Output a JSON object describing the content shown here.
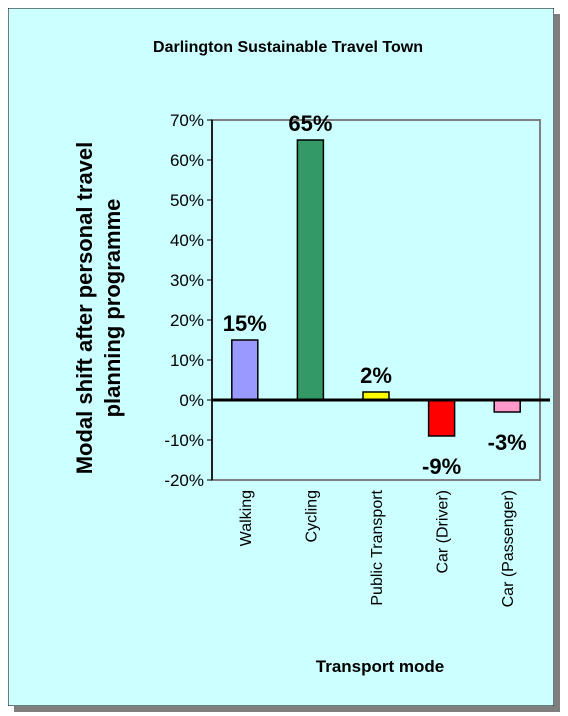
{
  "chart_data": {
    "type": "bar",
    "title": "Darlington Sustainable Travel Town",
    "xlabel": "Transport mode",
    "ylabel": [
      "Modal shift after personal travel",
      "planning programme"
    ],
    "categories": [
      "Walking",
      "Cycling",
      "Public Transport",
      "Car (Driver)",
      "Car (Passenger)"
    ],
    "values": [
      15,
      65,
      2,
      -9,
      -3
    ],
    "data_labels": [
      "15%",
      "65%",
      "2%",
      "-9%",
      "-3%"
    ],
    "ylim": [
      -20,
      70
    ],
    "y_ticks": [
      70,
      60,
      50,
      40,
      30,
      20,
      10,
      0,
      -10,
      -20
    ],
    "y_tick_labels": [
      "70%",
      "60%",
      "50%",
      "40%",
      "30%",
      "20%",
      "10%",
      "0%",
      "-10%",
      "-20%"
    ],
    "grid": false,
    "legend": "none",
    "colors": {
      "background": "#ccffff",
      "bars": [
        "#9999ff",
        "#339966",
        "#ffff00",
        "#ff0000",
        "#ff99cc"
      ],
      "plot_border": "#808080"
    }
  }
}
